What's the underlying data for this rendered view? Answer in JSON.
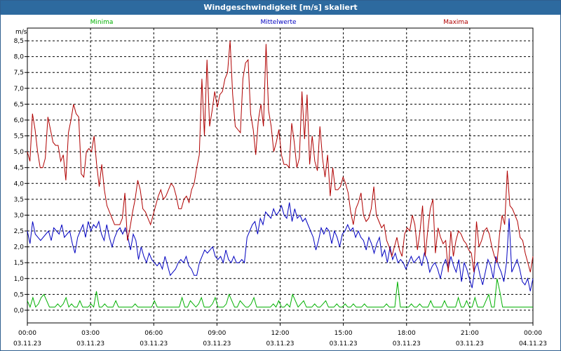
{
  "window": {
    "title": "Windgeschwindigkeit [m/s] skaliert"
  },
  "chart_data": {
    "type": "line",
    "title": "Windgeschwindigkeit [m/s] skaliert",
    "ylabel": "m/s",
    "ylim": [
      -0.4,
      8.9
    ],
    "xlim": [
      0,
      24
    ],
    "y_ticks": [
      "0,0",
      "0,5",
      "1,0",
      "1,5",
      "2,0",
      "2,5",
      "3,0",
      "3,5",
      "4,0",
      "4,5",
      "5,0",
      "5,5",
      "6,0",
      "6,5",
      "7,0",
      "7,5",
      "8,0",
      "8,5"
    ],
    "x_ticks": [
      {
        "time": "00:00",
        "date": "03.11.23"
      },
      {
        "time": "03:00",
        "date": "03.11.23"
      },
      {
        "time": "06:00",
        "date": "03.11.23"
      },
      {
        "time": "09:00",
        "date": "03.11.23"
      },
      {
        "time": "12:00",
        "date": "03.11.23"
      },
      {
        "time": "15:00",
        "date": "03.11.23"
      },
      {
        "time": "18:00",
        "date": "03.11.23"
      },
      {
        "time": "21:00",
        "date": "03.11.23"
      },
      {
        "time": "00:00",
        "date": "04.11.23"
      }
    ],
    "grid": true,
    "legend_position": "top",
    "series": [
      {
        "name": "Minima",
        "color": "#00b000",
        "values": [
          0.3,
          0.1,
          0.4,
          0.1,
          0.2,
          0.4,
          0.5,
          0.3,
          0.1,
          0.1,
          0.1,
          0.2,
          0.1,
          0.2,
          0.4,
          0.1,
          0.2,
          0.1,
          0.1,
          0.3,
          0.1,
          0.1,
          0.1,
          0.2,
          0.1,
          0.6,
          0.1,
          0.1,
          0.2,
          0.1,
          0.1,
          0.1,
          0.3,
          0.1,
          0.1,
          0.1,
          0.1,
          0.1,
          0.1,
          0.2,
          0.1,
          0.1,
          0.1,
          0.1,
          0.1,
          0.1,
          0.3,
          0.1,
          0.1,
          0.1,
          0.1,
          0.1,
          0.1,
          0.1,
          0.1,
          0.1,
          0.4,
          0.1,
          0.1,
          0.3,
          0.2,
          0.1,
          0.2,
          0.4,
          0.1,
          0.1,
          0.1,
          0.2,
          0.4,
          0.1,
          0.1,
          0.1,
          0.2,
          0.5,
          0.3,
          0.1,
          0.1,
          0.3,
          0.2,
          0.1,
          0.1,
          0.2,
          0.4,
          0.1,
          0.1,
          0.1,
          0.1,
          0.1,
          0.1,
          0.2,
          0.1,
          0.3,
          0.1,
          0.1,
          0.2,
          0.1,
          0.5,
          0.3,
          0.1,
          0.2,
          0.3,
          0.1,
          0.1,
          0.1,
          0.2,
          0.1,
          0.1,
          0.2,
          0.3,
          0.1,
          0.1,
          0.1,
          0.2,
          0.1,
          0.1,
          0.2,
          0.1,
          0.1,
          0.2,
          0.1,
          0.1,
          0.1,
          0.2,
          0.1,
          0.1,
          0.1,
          0.1,
          0.1,
          0.1,
          0.1,
          0.2,
          0.1,
          0.1,
          0.1,
          0.9,
          0.1,
          0.1,
          0.1,
          0.1,
          0.2,
          0.1,
          0.1,
          0.2,
          0.1,
          0.1,
          0.1,
          0.3,
          0.1,
          0.1,
          0.1,
          0.1,
          0.3,
          0.1,
          0.1,
          0.1,
          0.1,
          0.4,
          0.1,
          0.1,
          0.3,
          0.1,
          0.1,
          0.4,
          0.1,
          0.1,
          0.1,
          0.3,
          0.5,
          0.1,
          0.1,
          1.0,
          0.6,
          0.1,
          0.1,
          0.1,
          0.1,
          0.1,
          0.1,
          0.1,
          0.1,
          0.1,
          0.1,
          0.1,
          0.1
        ]
      },
      {
        "name": "Mittelwerte",
        "color": "#0000c0",
        "values": [
          2.5,
          2.1,
          2.8,
          2.4,
          2.3,
          2.2,
          2.3,
          2.4,
          2.5,
          2.2,
          2.6,
          2.5,
          2.4,
          2.7,
          2.3,
          2.4,
          2.5,
          2.1,
          1.8,
          2.3,
          2.5,
          2.7,
          2.3,
          2.8,
          2.5,
          2.7,
          2.6,
          2.8,
          2.4,
          2.2,
          2.7,
          2.3,
          2.0,
          2.3,
          2.5,
          2.6,
          2.4,
          2.6,
          2.3,
          1.9,
          2.4,
          2.2,
          1.6,
          2.0,
          1.7,
          1.5,
          1.8,
          1.6,
          1.5,
          1.4,
          1.5,
          1.3,
          1.7,
          1.4,
          1.1,
          1.2,
          1.3,
          1.5,
          1.6,
          1.5,
          1.7,
          1.4,
          1.3,
          1.1,
          1.1,
          1.5,
          1.7,
          1.9,
          1.8,
          1.9,
          2.0,
          1.7,
          1.6,
          1.7,
          1.5,
          1.9,
          1.6,
          1.5,
          1.7,
          1.5,
          1.5,
          1.6,
          1.5,
          2.3,
          2.5,
          2.7,
          2.8,
          2.4,
          2.9,
          2.7,
          3.1,
          3.0,
          2.9,
          3.2,
          3.0,
          3.1,
          3.3,
          3.0,
          2.9,
          3.4,
          2.8,
          3.2,
          2.9,
          3.0,
          2.8,
          2.9,
          2.7,
          2.5,
          2.3,
          1.9,
          2.2,
          2.6,
          2.4,
          2.6,
          2.5,
          2.1,
          2.5,
          2.3,
          2.0,
          2.4,
          2.5,
          2.7,
          2.5,
          2.6,
          2.3,
          2.5,
          2.3,
          2.2,
          1.9,
          2.3,
          2.1,
          1.8,
          2.1,
          2.3,
          1.7,
          1.9,
          1.5,
          2.0,
          1.6,
          1.8,
          1.5,
          1.6,
          1.5,
          1.3,
          1.5,
          1.7,
          1.5,
          1.6,
          1.7,
          1.4,
          1.8,
          1.6,
          1.2,
          1.4,
          1.5,
          1.3,
          1.0,
          1.4,
          1.6,
          1.3,
          1.7,
          1.4,
          1.2,
          1.6,
          0.9,
          1.5,
          1.3,
          1.0,
          0.7,
          1.3,
          1.5,
          1.1,
          0.8,
          1.2,
          1.6,
          1.4,
          1.0,
          1.7,
          1.4,
          1.2,
          0.9,
          1.5,
          2.9,
          1.2,
          1.4,
          1.6,
          1.3,
          0.9,
          0.8,
          1.0,
          0.6,
          1.0
        ]
      },
      {
        "name": "Maxima",
        "color": "#b00000",
        "values": [
          5.0,
          4.7,
          6.2,
          5.7,
          5.0,
          4.5,
          4.5,
          4.8,
          6.1,
          5.7,
          5.3,
          5.2,
          5.2,
          4.7,
          4.9,
          4.1,
          5.6,
          6.0,
          6.5,
          6.2,
          6.1,
          4.3,
          4.2,
          5.0,
          5.1,
          5.0,
          5.5,
          4.6,
          3.9,
          4.6,
          3.8,
          3.3,
          3.1,
          2.9,
          2.7,
          2.7,
          2.7,
          2.9,
          3.7,
          2.2,
          2.6,
          3.1,
          3.5,
          4.1,
          3.8,
          3.2,
          3.1,
          2.9,
          2.7,
          3.0,
          3.3,
          3.6,
          3.8,
          3.5,
          3.6,
          3.8,
          4.0,
          3.9,
          3.6,
          3.2,
          3.2,
          3.5,
          3.6,
          3.4,
          3.8,
          4.0,
          4.5,
          4.9,
          7.3,
          5.5,
          7.9,
          5.8,
          6.3,
          6.9,
          6.4,
          6.8,
          6.9,
          7.3,
          7.5,
          8.5,
          6.8,
          5.8,
          5.7,
          5.6,
          7.3,
          7.8,
          7.9,
          6.2,
          5.7,
          4.9,
          6.0,
          6.5,
          5.8,
          8.4,
          6.3,
          5.8,
          5.0,
          5.3,
          5.7,
          4.9,
          4.6,
          4.6,
          4.5,
          5.9,
          5.3,
          4.5,
          4.8,
          6.9,
          5.4,
          6.8,
          4.6,
          5.5,
          4.7,
          4.4,
          5.8,
          4.8,
          4.2,
          4.9,
          3.6,
          4.5,
          3.8,
          3.8,
          3.9,
          4.2,
          4.0,
          3.7,
          3.1,
          2.7,
          3.2,
          3.4,
          3.7,
          3.0,
          2.8,
          2.9,
          3.2,
          3.9,
          3.0,
          2.8,
          2.6,
          2.7,
          2.2,
          2.0,
          1.7,
          2.0,
          2.3,
          1.9,
          1.7,
          2.4,
          2.6,
          2.5,
          3.0,
          2.7,
          1.9,
          2.5,
          3.3,
          1.7,
          2.5,
          3.2,
          3.5,
          1.8,
          2.6,
          2.3,
          2.1,
          2.2,
          1.2,
          2.5,
          1.7,
          2.2,
          2.5,
          2.4,
          2.2,
          2.1,
          1.9,
          1.8,
          1.2,
          2.8,
          2.0,
          2.2,
          2.5,
          2.6,
          2.4,
          2.0,
          1.7,
          1.5,
          2.4,
          3.0,
          2.7,
          4.4,
          3.3,
          3.2,
          3.0,
          2.8,
          2.3,
          2.2,
          1.8,
          1.5,
          1.2,
          1.7
        ]
      }
    ]
  }
}
